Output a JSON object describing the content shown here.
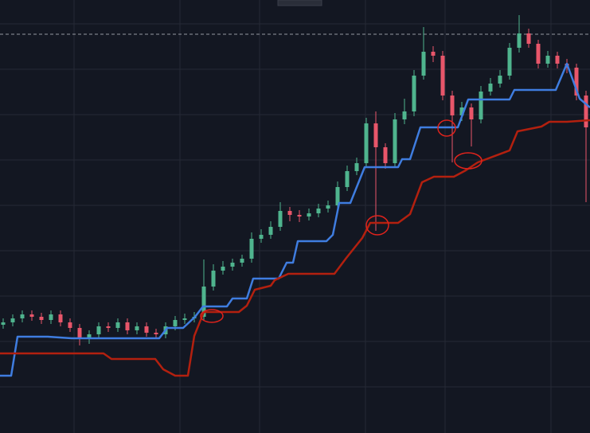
{
  "chart_data": {
    "type": "candlestick",
    "xlim": [
      0,
      741
    ],
    "ylim": [
      0,
      544
    ],
    "xticks": [
      93,
      226,
      326,
      459,
      559,
      692
    ],
    "yticks": [
      514,
      457,
      400,
      343,
      286,
      229,
      172,
      115,
      58
    ],
    "grid": true,
    "up_color": "#4fb48e",
    "down_color": "#e8566a",
    "price_line": 501,
    "x": [
      4,
      16,
      28,
      40,
      52,
      64,
      76,
      88,
      100,
      112,
      124,
      136,
      148,
      160,
      172,
      184,
      196,
      208,
      220,
      232,
      244,
      256,
      268,
      280,
      292,
      304,
      316,
      328,
      340,
      352,
      364,
      376,
      388,
      400,
      412,
      424,
      436,
      448,
      460,
      472,
      484,
      496,
      508,
      520,
      532,
      544,
      556,
      568,
      580,
      592,
      604,
      616,
      628,
      640,
      652,
      664,
      676,
      688,
      700,
      712,
      724,
      736
    ],
    "open": [
      136,
      139,
      144,
      149,
      146,
      142,
      149,
      139,
      132,
      119,
      124,
      134,
      132,
      139,
      129,
      134,
      126,
      124,
      134,
      142,
      144,
      146,
      184,
      204,
      209,
      214,
      219,
      244,
      249,
      259,
      279,
      274,
      272,
      276,
      282,
      286,
      309,
      329,
      339,
      389,
      359,
      339,
      394,
      404,
      449,
      479,
      474,
      424,
      399,
      409,
      394,
      429,
      439,
      449,
      484,
      502,
      489,
      464,
      474,
      464,
      459,
      424
    ],
    "high": [
      144,
      149,
      154,
      154,
      151,
      154,
      154,
      144,
      137,
      129,
      139,
      139,
      144,
      144,
      139,
      139,
      131,
      139,
      147,
      150,
      152,
      218,
      212,
      216,
      219,
      224,
      252,
      256,
      266,
      290,
      284,
      280,
      282,
      288,
      292,
      316,
      336,
      346,
      396,
      404,
      364,
      402,
      420,
      456,
      510,
      486,
      480,
      430,
      416,
      414,
      436,
      446,
      456,
      490,
      525,
      508,
      494,
      480,
      479,
      470,
      464,
      430
    ],
    "low": [
      131,
      134,
      139,
      141,
      137,
      137,
      134,
      127,
      110,
      112,
      119,
      127,
      127,
      124,
      124,
      121,
      119,
      119,
      129,
      137,
      139,
      141,
      179,
      199,
      204,
      209,
      214,
      239,
      244,
      254,
      266,
      265,
      267,
      271,
      277,
      281,
      304,
      324,
      334,
      254,
      332,
      334,
      388,
      398,
      444,
      466,
      418,
      340,
      392,
      360,
      389,
      424,
      434,
      444,
      478,
      484,
      458,
      459,
      458,
      452,
      418,
      290
    ],
    "close": [
      139,
      144,
      149,
      146,
      142,
      149,
      139,
      132,
      119,
      124,
      134,
      132,
      139,
      129,
      134,
      126,
      124,
      134,
      142,
      144,
      146,
      184,
      204,
      209,
      214,
      219,
      244,
      249,
      259,
      279,
      274,
      272,
      276,
      282,
      286,
      309,
      329,
      339,
      389,
      359,
      339,
      394,
      404,
      449,
      479,
      474,
      424,
      399,
      409,
      394,
      429,
      439,
      449,
      484,
      502,
      489,
      464,
      474,
      464,
      459,
      424,
      384
    ],
    "lines": [
      {
        "color": "#3f7de0",
        "x": [
          0,
          14,
          22,
          60,
          90,
          200,
          210,
          230,
          245,
          255,
          285,
          292,
          310,
          318,
          350,
          360,
          368,
          374,
          410,
          418,
          426,
          440,
          458,
          500,
          505,
          515,
          528,
          575,
          588,
          640,
          646,
          698,
          712,
          728,
          741
        ],
        "values": [
          72,
          72,
          121,
          121,
          119,
          119,
          132,
          132,
          146,
          159,
          159,
          169,
          169,
          194,
          194,
          214,
          214,
          241,
          241,
          249,
          289,
          289,
          334,
          334,
          344,
          344,
          384,
          384,
          419,
          419,
          431,
          431,
          464,
          420,
          409
        ]
      },
      {
        "color": "#b3200f",
        "x": [
          0,
          130,
          140,
          195,
          205,
          220,
          236,
          244,
          256,
          300,
          310,
          320,
          340,
          345,
          362,
          420,
          435,
          455,
          465,
          500,
          515,
          530,
          545,
          570,
          585,
          600,
          640,
          650,
          680,
          690,
          712,
          741
        ],
        "values": [
          100,
          100,
          93,
          93,
          80,
          72,
          72,
          122,
          152,
          152,
          160,
          180,
          185,
          192,
          200,
          200,
          220,
          245,
          264,
          264,
          275,
          315,
          322,
          322,
          330,
          340,
          355,
          379,
          385,
          391,
          391,
          393
        ]
      }
    ]
  }
}
